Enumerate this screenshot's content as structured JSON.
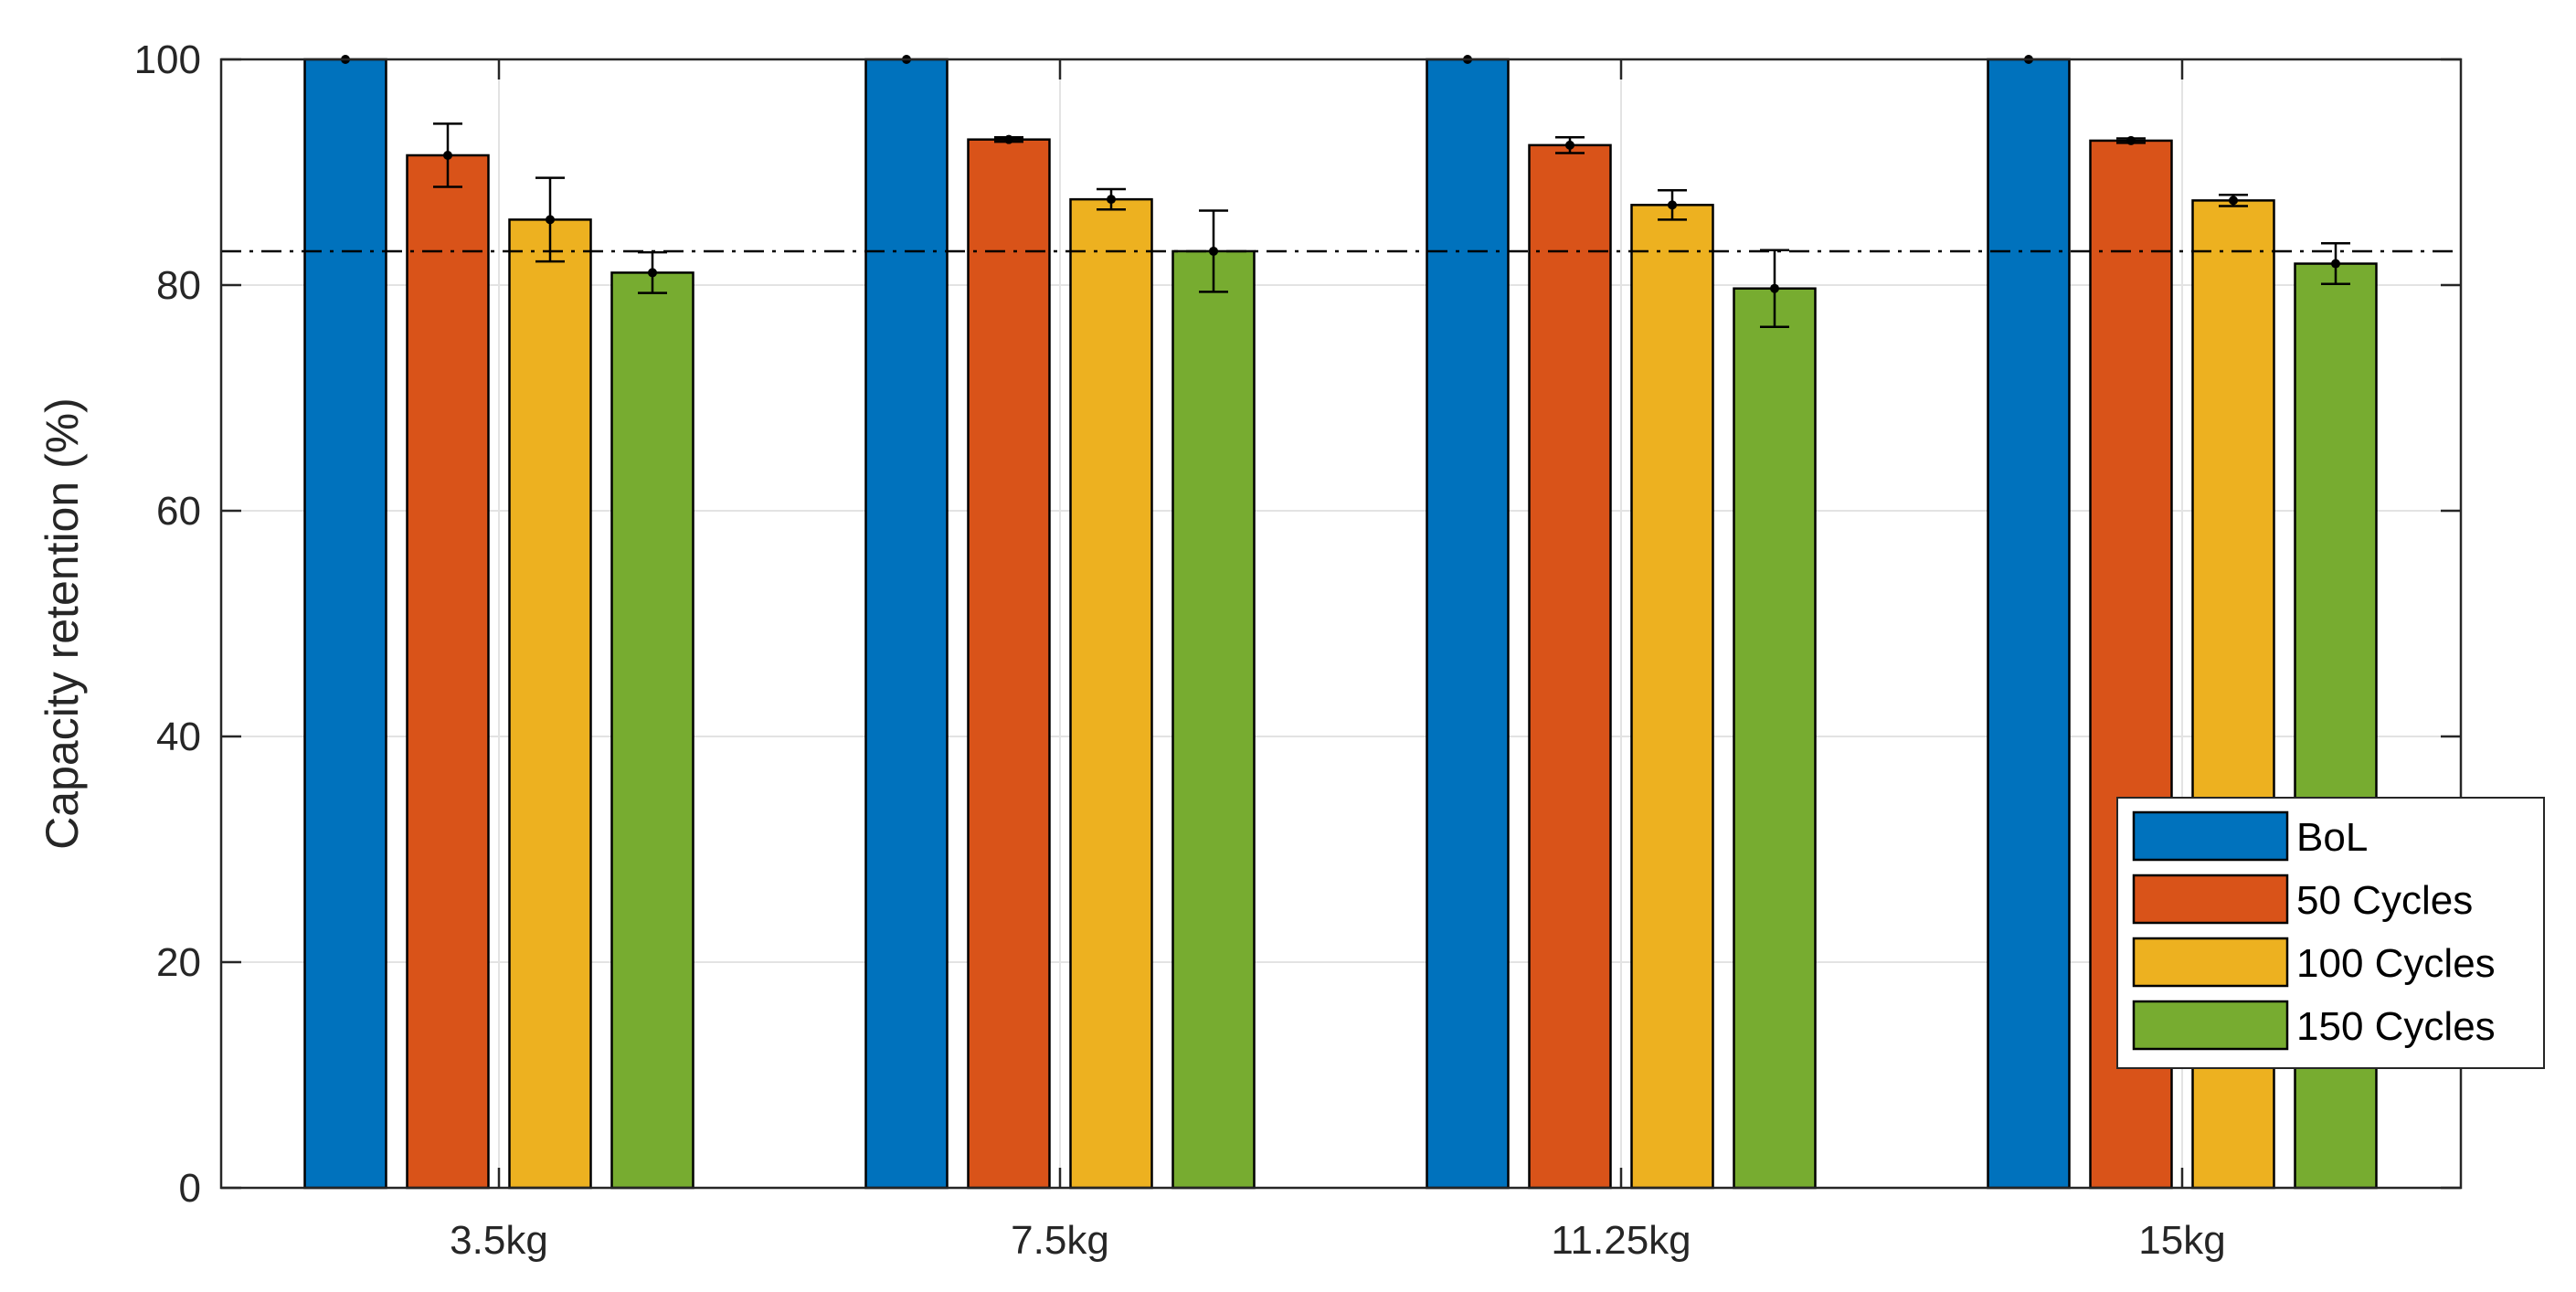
{
  "chart_data": {
    "type": "bar",
    "title": "",
    "xlabel": "",
    "ylabel": "Capacity retention (%)",
    "ylim": [
      0,
      100
    ],
    "yticks": [
      0,
      20,
      40,
      60,
      80,
      100
    ],
    "grid": true,
    "legend_position": "bottom-right",
    "categories": [
      "3.5kg",
      "7.5kg",
      "11.25kg",
      "15kg"
    ],
    "reference_line": {
      "y": 83,
      "style": "dash-dot"
    },
    "series": [
      {
        "name": "BoL",
        "color": "#0072BD",
        "values": [
          100,
          100,
          100,
          100
        ],
        "errors": [
          0,
          0,
          0,
          0
        ]
      },
      {
        "name": "50 Cycles",
        "color": "#D95319",
        "values": [
          91.5,
          92.9,
          92.4,
          92.8
        ],
        "errors": [
          2.8,
          0.2,
          0.7,
          0.2
        ]
      },
      {
        "name": "100 Cycles",
        "color": "#EDB120",
        "values": [
          85.8,
          87.6,
          87.1,
          87.5
        ],
        "errors": [
          3.7,
          0.9,
          1.3,
          0.5
        ]
      },
      {
        "name": "150 Cycles",
        "color": "#77AC30",
        "values": [
          81.1,
          83.0,
          79.7,
          81.9
        ],
        "errors": [
          1.8,
          3.6,
          3.4,
          1.8
        ]
      }
    ]
  }
}
